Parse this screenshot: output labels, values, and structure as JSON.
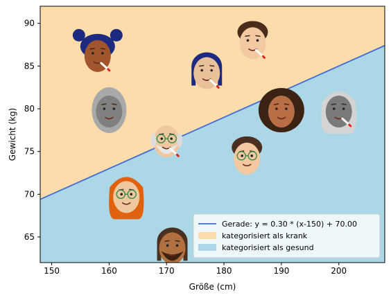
{
  "chart_data": {
    "type": "scatter",
    "xlabel": "Größe (cm)",
    "ylabel": "Gewicht (kg)",
    "xlim": [
      148,
      208
    ],
    "ylim": [
      62,
      92
    ],
    "xticks": [
      "150",
      "160",
      "170",
      "180",
      "190",
      "200"
    ],
    "yticks": [
      "65",
      "70",
      "75",
      "80",
      "85",
      "90"
    ],
    "line": {
      "slope": 0.3,
      "x0": 150,
      "intercept": 70.0
    },
    "regions": {
      "above_color": "#fcdcaa",
      "below_color": "#acd7e6",
      "line_color": "#4169d8"
    },
    "legend": {
      "position": "lower right",
      "entries": [
        {
          "kind": "line",
          "label": "Gerade: y = 0.30 * (x-150) + 70.00"
        },
        {
          "kind": "patch-above",
          "label": "kategorisiert als krank"
        },
        {
          "kind": "patch-below",
          "label": "kategorisiert als gesund"
        }
      ]
    },
    "points": [
      {
        "x": 158,
        "y": 86.5,
        "icon": "person-face-icon",
        "skin": "#a0552d",
        "hair": "#1e2a80",
        "style": "buns",
        "cig": true
      },
      {
        "x": 177,
        "y": 84.5,
        "icon": "person-face-icon",
        "skin": "#e8c09a",
        "hair": "#1e2a80",
        "style": "braids",
        "cig": true
      },
      {
        "x": 185,
        "y": 88.0,
        "icon": "person-face-icon",
        "skin": "#f2c9a0",
        "hair": "#4a2c1a",
        "style": "curly-short",
        "cig": true
      },
      {
        "x": 160,
        "y": 80.0,
        "icon": "person-face-icon",
        "skin": "#808080",
        "hair": "#a9a9a9",
        "style": "hijab",
        "cig": false
      },
      {
        "x": 190,
        "y": 80.0,
        "icon": "person-face-icon",
        "skin": "#b86f45",
        "hair": "#3b2314",
        "style": "curly-long",
        "cig": false
      },
      {
        "x": 200,
        "y": 80.0,
        "icon": "person-face-icon",
        "skin": "#7a7a7a",
        "hair": "#d4d4d4",
        "style": "long",
        "cig": true
      },
      {
        "x": 170,
        "y": 76.5,
        "icon": "person-face-icon",
        "skin": "#f0c8a0",
        "hair": "#dcdcdc",
        "style": "bald",
        "cig": true,
        "glasses": true,
        "beard": true
      },
      {
        "x": 184,
        "y": 74.5,
        "icon": "person-face-icon",
        "skin": "#f2c9a0",
        "hair": "#4a3020",
        "style": "short",
        "cig": false,
        "glasses": true
      },
      {
        "x": 163,
        "y": 70.0,
        "icon": "person-face-icon",
        "skin": "#f0c8a0",
        "hair": "#e0620f",
        "style": "long",
        "cig": false,
        "glasses": true
      },
      {
        "x": 171,
        "y": 64.0,
        "icon": "person-face-icon",
        "skin": "#b0703f",
        "hair": "#4a3020",
        "style": "braids",
        "cig": false,
        "beard": true
      }
    ]
  }
}
